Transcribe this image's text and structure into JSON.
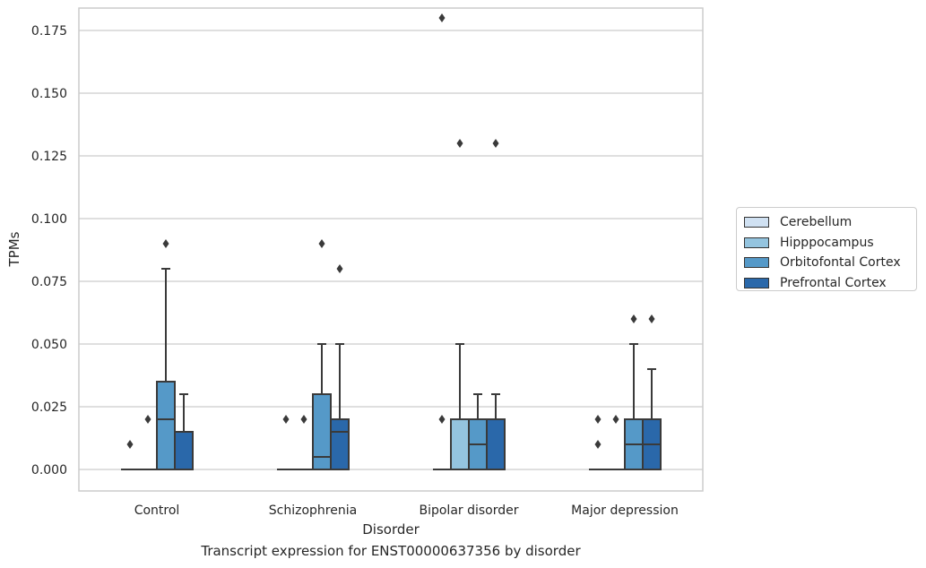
{
  "caption": "Transcript expression for ENST00000637356 by disorder",
  "chart_data": {
    "type": "box",
    "xlabel": "Disorder",
    "ylabel": "TPMs",
    "categories": [
      "Control",
      "Schizophrenia",
      "Bipolar disorder",
      "Major depression"
    ],
    "ylim": [
      -0.009,
      0.19
    ],
    "yticks": [
      "0.000",
      "0.025",
      "0.050",
      "0.075",
      "0.100",
      "0.125",
      "0.150",
      "0.175"
    ],
    "ytick_values": [
      0,
      0.025,
      0.05,
      0.075,
      0.1,
      0.125,
      0.15,
      0.175
    ],
    "grid": true,
    "legend_position": "right",
    "series": [
      {
        "name": "Cerebellum",
        "color": "#d0e1f2",
        "boxes": [
          {
            "q1": 0,
            "median": 0,
            "q3": 0,
            "whisker_low": 0,
            "whisker_high": 0,
            "outliers": [
              0.01
            ]
          },
          {
            "q1": 0,
            "median": 0,
            "q3": 0,
            "whisker_low": 0,
            "whisker_high": 0,
            "outliers": [
              0.02
            ]
          },
          {
            "q1": 0,
            "median": 0,
            "q3": 0,
            "whisker_low": 0,
            "whisker_high": 0,
            "outliers": [
              0.02,
              0.18
            ]
          },
          {
            "q1": 0,
            "median": 0,
            "q3": 0,
            "whisker_low": 0,
            "whisker_high": 0,
            "outliers": [
              0.01,
              0.02
            ]
          }
        ]
      },
      {
        "name": "Hipppocampus",
        "color": "#94c4df",
        "boxes": [
          {
            "q1": 0,
            "median": 0,
            "q3": 0,
            "whisker_low": 0,
            "whisker_high": 0,
            "outliers": [
              0.02
            ]
          },
          {
            "q1": 0,
            "median": 0,
            "q3": 0,
            "whisker_low": 0,
            "whisker_high": 0,
            "outliers": [
              0.02
            ]
          },
          {
            "q1": 0,
            "median": 0.02,
            "q3": 0.02,
            "whisker_low": 0,
            "whisker_high": 0.05,
            "outliers": [
              0.13
            ]
          },
          {
            "q1": 0,
            "median": 0,
            "q3": 0,
            "whisker_low": 0,
            "whisker_high": 0,
            "outliers": [
              0.02
            ]
          }
        ]
      },
      {
        "name": "Orbitofontal Cortex",
        "color": "#5599c8",
        "boxes": [
          {
            "q1": 0,
            "median": 0.02,
            "q3": 0.035,
            "whisker_low": 0,
            "whisker_high": 0.08,
            "outliers": [
              0.09
            ]
          },
          {
            "q1": 0,
            "median": 0.005,
            "q3": 0.03,
            "whisker_low": 0,
            "whisker_high": 0.05,
            "outliers": [
              0.09
            ]
          },
          {
            "q1": 0,
            "median": 0.01,
            "q3": 0.02,
            "whisker_low": 0,
            "whisker_high": 0.03,
            "outliers": []
          },
          {
            "q1": 0,
            "median": 0.01,
            "q3": 0.02,
            "whisker_low": 0,
            "whisker_high": 0.05,
            "outliers": [
              0.06
            ]
          }
        ]
      },
      {
        "name": "Prefrontal Cortex",
        "color": "#2a68aa",
        "boxes": [
          {
            "q1": 0,
            "median": 0.015,
            "q3": 0.015,
            "whisker_low": 0,
            "whisker_high": 0.03,
            "outliers": []
          },
          {
            "q1": 0,
            "median": 0.015,
            "q3": 0.02,
            "whisker_low": 0,
            "whisker_high": 0.05,
            "outliers": [
              0.08
            ]
          },
          {
            "q1": 0,
            "median": 0.02,
            "q3": 0.02,
            "whisker_low": 0,
            "whisker_high": 0.03,
            "outliers": [
              0.13
            ]
          },
          {
            "q1": 0,
            "median": 0.01,
            "q3": 0.02,
            "whisker_low": 0,
            "whisker_high": 0.04,
            "outliers": [
              0.06
            ]
          }
        ]
      }
    ]
  }
}
